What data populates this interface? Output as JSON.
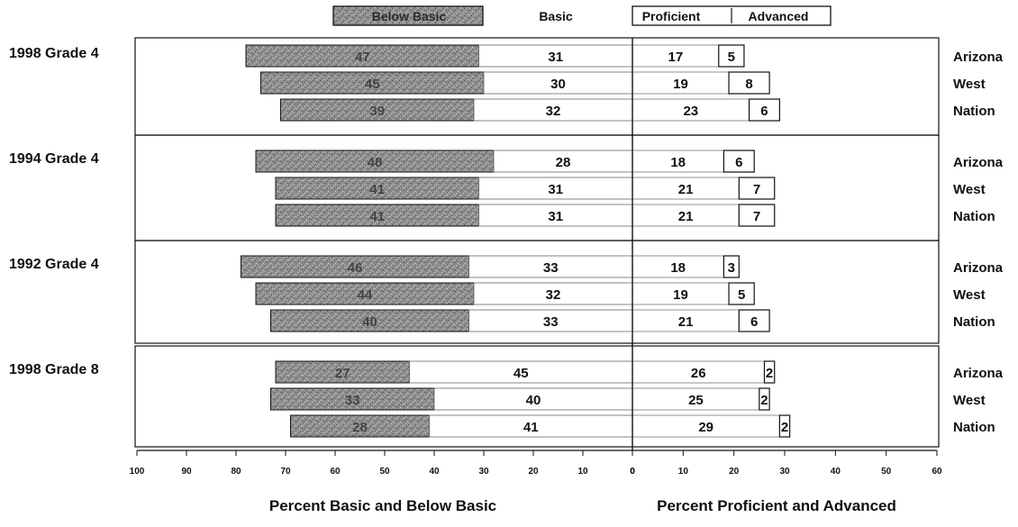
{
  "chart_data": {
    "type": "bar",
    "layout": "diverging-stacked",
    "legend": {
      "placement": "top",
      "items": [
        "Below Basic",
        "Basic",
        "Proficient",
        "Advanced"
      ]
    },
    "xlabel_left": "Percent Basic and Below Basic",
    "xlabel_right": "Percent Proficient and Advanced",
    "left_axis": {
      "range": [
        100,
        0
      ],
      "ticks": [
        "100",
        "90",
        "80",
        "70",
        "60",
        "50",
        "40",
        "30",
        "20",
        "10",
        "0"
      ]
    },
    "right_axis": {
      "range": [
        0,
        60
      ],
      "ticks": [
        "0",
        "10",
        "20",
        "30",
        "40",
        "50",
        "60"
      ]
    },
    "groups": [
      {
        "label": "1998 Grade 4",
        "rows": [
          {
            "jurisdiction": "Arizona",
            "below_basic": 47,
            "basic": 31,
            "proficient": 17,
            "advanced": 5
          },
          {
            "jurisdiction": "West",
            "below_basic": 45,
            "basic": 30,
            "proficient": 19,
            "advanced": 8
          },
          {
            "jurisdiction": "Nation",
            "below_basic": 39,
            "basic": 32,
            "proficient": 23,
            "advanced": 6
          }
        ]
      },
      {
        "label": "1994 Grade 4",
        "rows": [
          {
            "jurisdiction": "Arizona",
            "below_basic": 48,
            "basic": 28,
            "proficient": 18,
            "advanced": 6
          },
          {
            "jurisdiction": "West",
            "below_basic": 41,
            "basic": 31,
            "proficient": 21,
            "advanced": 7
          },
          {
            "jurisdiction": "Nation",
            "below_basic": 41,
            "basic": 31,
            "proficient": 21,
            "advanced": 7
          }
        ]
      },
      {
        "label": "1992 Grade 4",
        "rows": [
          {
            "jurisdiction": "Arizona",
            "below_basic": 46,
            "basic": 33,
            "proficient": 18,
            "advanced": 3
          },
          {
            "jurisdiction": "West",
            "below_basic": 44,
            "basic": 32,
            "proficient": 19,
            "advanced": 5
          },
          {
            "jurisdiction": "Nation",
            "below_basic": 40,
            "basic": 33,
            "proficient": 21,
            "advanced": 6
          }
        ]
      },
      {
        "label": "1998 Grade 8",
        "rows": [
          {
            "jurisdiction": "Arizona",
            "below_basic": 27,
            "basic": 45,
            "proficient": 26,
            "advanced": 2
          },
          {
            "jurisdiction": "West",
            "below_basic": 33,
            "basic": 40,
            "proficient": 25,
            "advanced": 2
          },
          {
            "jurisdiction": "Nation",
            "below_basic": 28,
            "basic": 41,
            "proficient": 29,
            "advanced": 2
          }
        ]
      }
    ],
    "colors": {
      "below_basic": "#8a8a8a",
      "basic": "#ffffff",
      "proficient": "#ffffff",
      "advanced": "#ffffff",
      "line": "#111111"
    }
  }
}
